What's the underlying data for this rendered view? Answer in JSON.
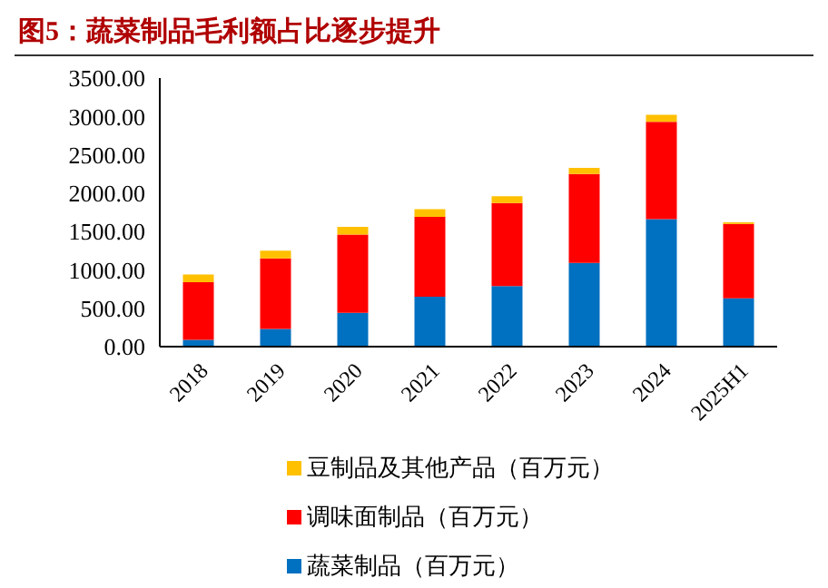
{
  "chart_data": {
    "type": "bar",
    "title": "图5：蔬菜制品毛利额占比逐步提升",
    "categories": [
      "2018",
      "2019",
      "2020",
      "2021",
      "2022",
      "2023",
      "2024",
      "2025H1"
    ],
    "stacked": true,
    "legend": "bottom",
    "grid": false,
    "ylim": [
      0,
      3500
    ],
    "yticks": [
      {
        "value": 0,
        "label": "0.00"
      },
      {
        "value": 500,
        "label": "500.00"
      },
      {
        "value": 1000,
        "label": "1000.00"
      },
      {
        "value": 1500,
        "label": "1500.00"
      },
      {
        "value": 2000,
        "label": "2000.00"
      },
      {
        "value": 2500,
        "label": "2500.00"
      },
      {
        "value": 3000,
        "label": "3000.00"
      },
      {
        "value": 3500,
        "label": "3500.00"
      }
    ],
    "series": [
      {
        "name": "蔬菜制品（百万元）",
        "color": "#0070c0",
        "values": [
          90,
          230,
          440,
          650,
          790,
          1090,
          1660,
          630
        ]
      },
      {
        "name": "调味面制品（百万元）",
        "color": "#ff0000",
        "values": [
          750,
          920,
          1020,
          1040,
          1080,
          1160,
          1270,
          970
        ]
      },
      {
        "name": "豆制品及其他产品（百万元）",
        "color": "#ffc000",
        "values": [
          100,
          100,
          100,
          100,
          90,
          80,
          90,
          20
        ]
      }
    ]
  }
}
